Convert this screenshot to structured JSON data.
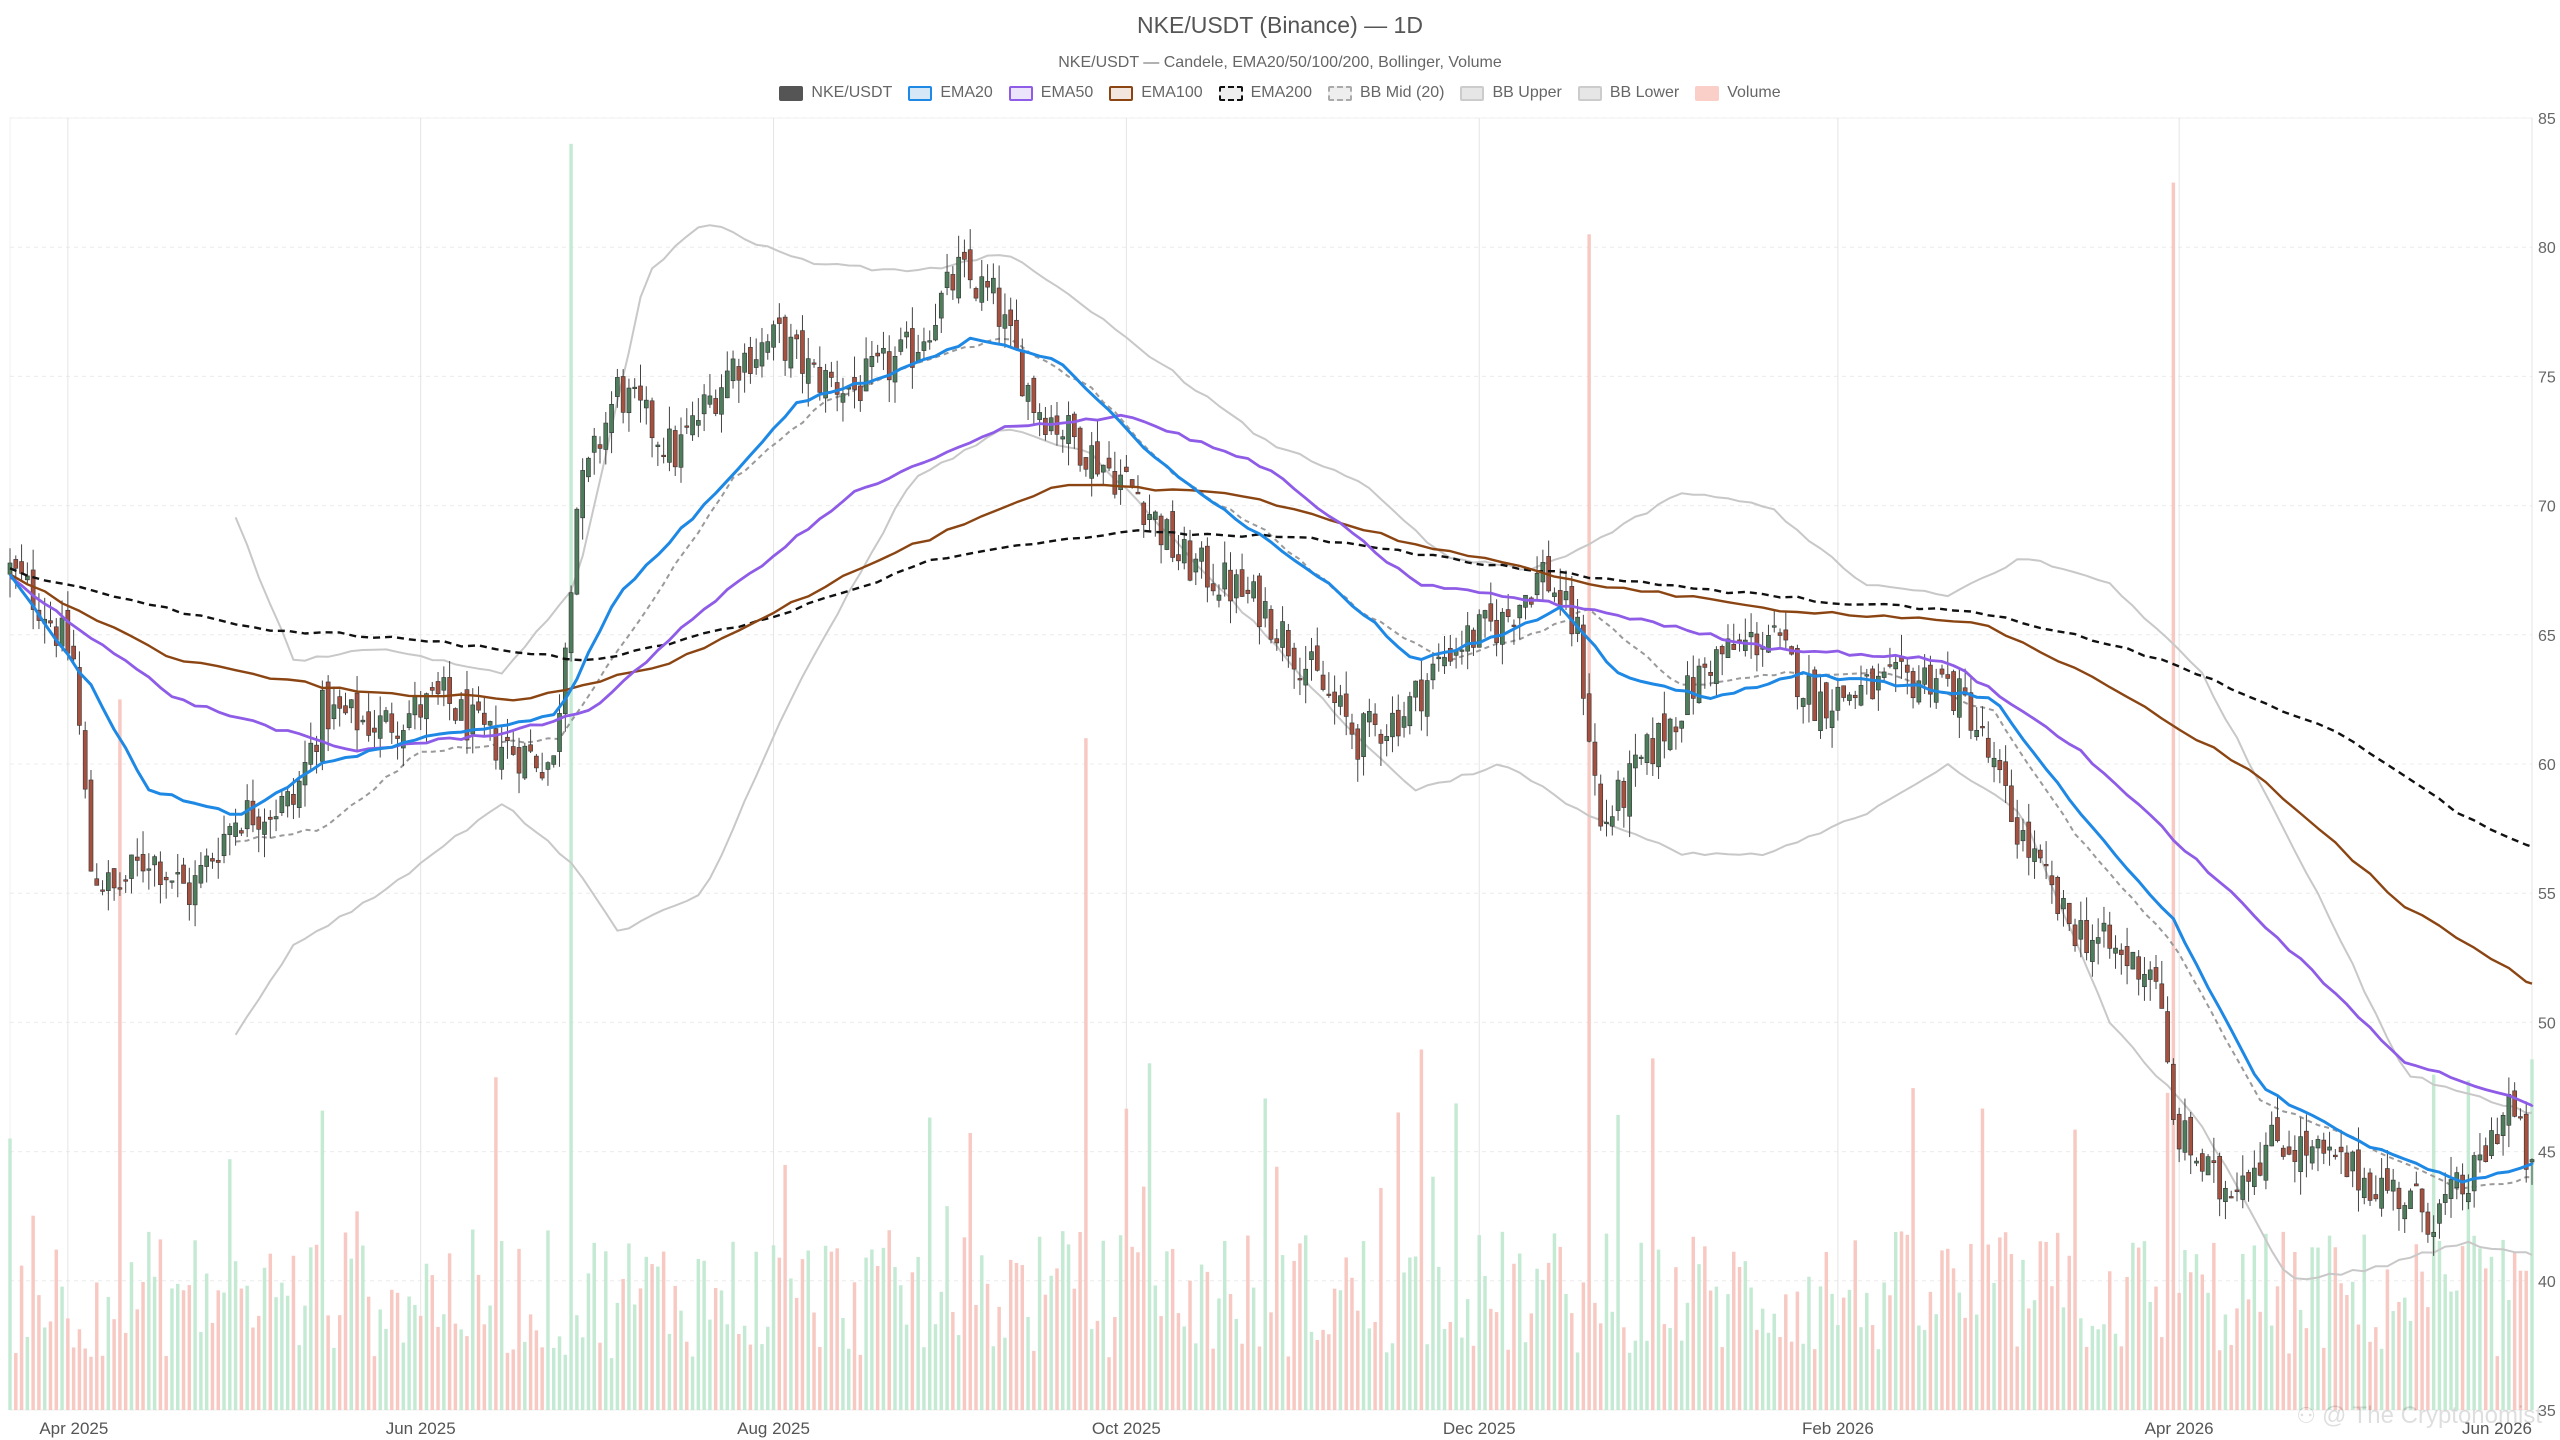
{
  "title": "NKE/USDT (Binance) — 1D",
  "subtitle": "NKE/USDT — Candele, EMA20/50/100/200, Bollinger, Volume",
  "watermark": "@ The Cryptonomist",
  "legend": [
    {
      "label": "NKE/USDT",
      "fill": "#555555",
      "border": "#555555",
      "dashed": false
    },
    {
      "label": "EMA20",
      "fill": "#d6e8f7",
      "border": "#1e88e5",
      "dashed": false
    },
    {
      "label": "EMA50",
      "fill": "#ece4fb",
      "border": "#8e5ce6",
      "dashed": false
    },
    {
      "label": "EMA100",
      "fill": "#f3e6de",
      "border": "#8b4513",
      "dashed": false
    },
    {
      "label": "EMA200",
      "fill": "#eeeeee",
      "border": "#111111",
      "dashed": true
    },
    {
      "label": "BB Mid (20)",
      "fill": "#eeeeee",
      "border": "#aaaaaa",
      "dashed": true
    },
    {
      "label": "BB Upper",
      "fill": "#e6e6e6",
      "border": "#cccccc",
      "dashed": false
    },
    {
      "label": "BB Lower",
      "fill": "#e6e6e6",
      "border": "#cccccc",
      "dashed": false
    },
    {
      "label": "Volume",
      "fill": "#f9cfc8",
      "border": "#f9cfc8",
      "dashed": false
    }
  ],
  "colors": {
    "up": "#4e7d5c",
    "down": "#a6513f",
    "volume_up": "#bfe8cf",
    "volume_down": "#f6c3bb",
    "ema20": "#1e88e5",
    "ema50": "#8e5ce6",
    "ema100": "#8b4513",
    "ema200": "#111111",
    "bb_mid": "#9a9a9a",
    "bb_band": "#c8c8c8",
    "grid": "#ececec"
  },
  "chart_data": {
    "type": "candlestick",
    "y_axis": {
      "position": "right",
      "range": [
        35,
        85
      ],
      "ticks": [
        35,
        40,
        45,
        50,
        55,
        60,
        65,
        70,
        75,
        80,
        85
      ]
    },
    "x_axis": {
      "range": [
        "2025-03-22",
        "2026-06-01"
      ],
      "tick_labels": [
        "Apr 2025",
        "Jun 2025",
        "Aug 2025",
        "Oct 2025",
        "Dec 2025",
        "Feb 2026",
        "Apr 2026",
        "Jun 2026"
      ],
      "tick_dates": [
        "2025-04-01",
        "2025-06-01",
        "2025-08-01",
        "2025-10-01",
        "2025-12-01",
        "2026-02-01",
        "2026-04-01",
        "2026-06-01"
      ]
    },
    "grid": true,
    "legend_position": "top-center",
    "close_anchors": [
      [
        "2025-03-22",
        67.5
      ],
      [
        "2025-03-28",
        66.0
      ],
      [
        "2025-04-02",
        64.0
      ],
      [
        "2025-04-05",
        56.0
      ],
      [
        "2025-04-09",
        55.0
      ],
      [
        "2025-04-15",
        56.5
      ],
      [
        "2025-04-22",
        55.0
      ],
      [
        "2025-04-30",
        58.0
      ],
      [
        "2025-05-10",
        58.5
      ],
      [
        "2025-05-15",
        62.0
      ],
      [
        "2025-05-25",
        61.5
      ],
      [
        "2025-06-05",
        62.5
      ],
      [
        "2025-06-12",
        61.0
      ],
      [
        "2025-06-18",
        60.5
      ],
      [
        "2025-06-24",
        60.0
      ],
      [
        "2025-06-28",
        70.0
      ],
      [
        "2025-07-05",
        74.5
      ],
      [
        "2025-07-15",
        72.0
      ],
      [
        "2025-07-25",
        75.5
      ],
      [
        "2025-08-02",
        76.5
      ],
      [
        "2025-08-08",
        75.0
      ],
      [
        "2025-08-15",
        74.5
      ],
      [
        "2025-08-25",
        76.0
      ],
      [
        "2025-09-02",
        79.0
      ],
      [
        "2025-09-08",
        78.0
      ],
      [
        "2025-09-15",
        74.0
      ],
      [
        "2025-09-25",
        72.0
      ],
      [
        "2025-10-03",
        70.5
      ],
      [
        "2025-10-10",
        68.0
      ],
      [
        "2025-10-18",
        67.0
      ],
      [
        "2025-10-25",
        66.0
      ],
      [
        "2025-11-02",
        63.5
      ],
      [
        "2025-11-10",
        61.0
      ],
      [
        "2025-11-18",
        62.0
      ],
      [
        "2025-11-26",
        64.5
      ],
      [
        "2025-12-05",
        65.5
      ],
      [
        "2025-12-12",
        67.5
      ],
      [
        "2025-12-18",
        65.0
      ],
      [
        "2025-12-22",
        57.5
      ],
      [
        "2026-01-01",
        61.0
      ],
      [
        "2026-01-10",
        64.0
      ],
      [
        "2026-01-20",
        65.0
      ],
      [
        "2026-01-28",
        62.5
      ],
      [
        "2026-02-10",
        63.0
      ],
      [
        "2026-02-18",
        63.5
      ],
      [
        "2026-02-24",
        62.0
      ],
      [
        "2026-03-03",
        58.0
      ],
      [
        "2026-03-12",
        54.0
      ],
      [
        "2026-03-22",
        52.5
      ],
      [
        "2026-03-28",
        52.0
      ],
      [
        "2026-03-31",
        46.0
      ],
      [
        "2026-04-08",
        43.5
      ],
      [
        "2026-04-18",
        45.5
      ],
      [
        "2026-04-28",
        44.5
      ],
      [
        "2026-05-08",
        43.5
      ],
      [
        "2026-05-15",
        42.5
      ],
      [
        "2026-05-22",
        44.0
      ],
      [
        "2026-05-28",
        47.0
      ],
      [
        "2026-06-01",
        44.0
      ]
    ],
    "ema20_anchors": [
      [
        "2025-03-22",
        67.3
      ],
      [
        "2025-04-05",
        63.0
      ],
      [
        "2025-04-15",
        59.0
      ],
      [
        "2025-05-01",
        58.0
      ],
      [
        "2025-05-15",
        60.0
      ],
      [
        "2025-06-01",
        61.0
      ],
      [
        "2025-06-15",
        61.5
      ],
      [
        "2025-06-25",
        62.0
      ],
      [
        "2025-07-05",
        66.5
      ],
      [
        "2025-07-20",
        70.0
      ],
      [
        "2025-08-05",
        74.0
      ],
      [
        "2025-08-20",
        75.0
      ],
      [
        "2025-09-05",
        76.5
      ],
      [
        "2025-09-20",
        75.5
      ],
      [
        "2025-10-05",
        72.0
      ],
      [
        "2025-10-20",
        69.5
      ],
      [
        "2025-11-05",
        67.0
      ],
      [
        "2025-11-20",
        64.0
      ],
      [
        "2025-12-05",
        65.0
      ],
      [
        "2025-12-15",
        66.0
      ],
      [
        "2025-12-25",
        63.5
      ],
      [
        "2026-01-10",
        62.5
      ],
      [
        "2026-01-25",
        63.5
      ],
      [
        "2026-02-15",
        63.0
      ],
      [
        "2026-02-28",
        62.5
      ],
      [
        "2026-03-15",
        58.0
      ],
      [
        "2026-03-31",
        54.0
      ],
      [
        "2026-04-15",
        47.5
      ],
      [
        "2026-05-01",
        45.5
      ],
      [
        "2026-05-20",
        43.8
      ],
      [
        "2026-06-01",
        44.5
      ]
    ],
    "ema50_anchors": [
      [
        "2025-03-22",
        67.2
      ],
      [
        "2025-04-20",
        62.5
      ],
      [
        "2025-05-20",
        60.5
      ],
      [
        "2025-06-15",
        61.2
      ],
      [
        "2025-06-30",
        62.0
      ],
      [
        "2025-07-20",
        66.0
      ],
      [
        "2025-08-15",
        70.5
      ],
      [
        "2025-09-10",
        73.0
      ],
      [
        "2025-10-01",
        73.5
      ],
      [
        "2025-10-25",
        71.5
      ],
      [
        "2025-11-20",
        67.0
      ],
      [
        "2025-12-20",
        66.0
      ],
      [
        "2026-01-20",
        64.5
      ],
      [
        "2026-02-20",
        64.0
      ],
      [
        "2026-03-15",
        60.5
      ],
      [
        "2026-04-10",
        55.0
      ],
      [
        "2026-05-10",
        48.5
      ],
      [
        "2026-06-01",
        46.8
      ]
    ],
    "ema100_anchors": [
      [
        "2025-03-22",
        67.3
      ],
      [
        "2025-04-20",
        64.0
      ],
      [
        "2025-05-20",
        62.8
      ],
      [
        "2025-06-20",
        62.5
      ],
      [
        "2025-07-15",
        64.0
      ],
      [
        "2025-08-20",
        68.0
      ],
      [
        "2025-09-20",
        70.8
      ],
      [
        "2025-10-20",
        70.5
      ],
      [
        "2025-11-20",
        68.5
      ],
      [
        "2025-12-20",
        67.0
      ],
      [
        "2026-01-20",
        66.0
      ],
      [
        "2026-02-25",
        65.5
      ],
      [
        "2026-03-20",
        63.0
      ],
      [
        "2026-04-15",
        59.5
      ],
      [
        "2026-05-10",
        54.5
      ],
      [
        "2026-06-01",
        51.5
      ]
    ],
    "ema200_anchors": [
      [
        "2025-03-22",
        67.5
      ],
      [
        "2025-05-01",
        65.3
      ],
      [
        "2025-06-01",
        64.8
      ],
      [
        "2025-06-30",
        64.0
      ],
      [
        "2025-07-30",
        65.5
      ],
      [
        "2025-08-30",
        68.0
      ],
      [
        "2025-09-30",
        69.0
      ],
      [
        "2025-10-30",
        68.8
      ],
      [
        "2025-11-30",
        67.8
      ],
      [
        "2025-12-30",
        67.0
      ],
      [
        "2026-01-30",
        66.3
      ],
      [
        "2026-02-28",
        65.8
      ],
      [
        "2026-03-30",
        64.0
      ],
      [
        "2026-04-30",
        61.0
      ],
      [
        "2026-05-20",
        58.0
      ],
      [
        "2026-06-01",
        56.8
      ]
    ],
    "bb_upper_anchors": [
      [
        "2025-04-30",
        69.5
      ],
      [
        "2025-05-10",
        64.0
      ],
      [
        "2025-05-25",
        64.5
      ],
      [
        "2025-06-15",
        63.5
      ],
      [
        "2025-06-28",
        67.0
      ],
      [
        "2025-07-10",
        79.0
      ],
      [
        "2025-07-20",
        81.0
      ],
      [
        "2025-08-05",
        79.5
      ],
      [
        "2025-08-25",
        79.0
      ],
      [
        "2025-09-10",
        79.8
      ],
      [
        "2025-09-25",
        77.5
      ],
      [
        "2025-10-10",
        75.0
      ],
      [
        "2025-10-25",
        72.5
      ],
      [
        "2025-11-10",
        71.0
      ],
      [
        "2025-11-25",
        68.0
      ],
      [
        "2025-12-10",
        67.5
      ],
      [
        "2025-12-20",
        68.5
      ],
      [
        "2026-01-05",
        70.5
      ],
      [
        "2026-01-20",
        70.0
      ],
      [
        "2026-02-05",
        67.0
      ],
      [
        "2026-02-20",
        66.5
      ],
      [
        "2026-03-05",
        68.0
      ],
      [
        "2026-03-20",
        67.0
      ],
      [
        "2026-04-05",
        63.5
      ],
      [
        "2026-04-25",
        55.0
      ],
      [
        "2026-05-10",
        48.0
      ],
      [
        "2026-06-01",
        46.5
      ]
    ],
    "bb_mid_anchors": [
      [
        "2025-04-30",
        57.0
      ],
      [
        "2025-05-15",
        57.5
      ],
      [
        "2025-06-01",
        60.5
      ],
      [
        "2025-06-25",
        61.0
      ],
      [
        "2025-07-10",
        66.0
      ],
      [
        "2025-07-25",
        71.0
      ],
      [
        "2025-08-10",
        74.0
      ],
      [
        "2025-08-25",
        75.5
      ],
      [
        "2025-09-10",
        76.5
      ],
      [
        "2025-09-25",
        74.5
      ],
      [
        "2025-10-10",
        71.0
      ],
      [
        "2025-10-25",
        69.0
      ],
      [
        "2025-11-10",
        66.0
      ],
      [
        "2025-11-25",
        64.0
      ],
      [
        "2025-12-10",
        65.0
      ],
      [
        "2025-12-20",
        66.0
      ],
      [
        "2026-01-05",
        63.0
      ],
      [
        "2026-01-20",
        63.5
      ],
      [
        "2026-02-10",
        63.5
      ],
      [
        "2026-02-28",
        62.0
      ],
      [
        "2026-03-15",
        57.0
      ],
      [
        "2026-03-31",
        53.0
      ],
      [
        "2026-04-15",
        47.0
      ],
      [
        "2026-05-01",
        45.5
      ],
      [
        "2026-05-20",
        43.5
      ],
      [
        "2026-06-01",
        44.0
      ]
    ],
    "bb_lower_anchors": [
      [
        "2025-04-30",
        49.5
      ],
      [
        "2025-05-10",
        53.0
      ],
      [
        "2025-05-25",
        55.0
      ],
      [
        "2025-06-15",
        58.5
      ],
      [
        "2025-06-28",
        56.0
      ],
      [
        "2025-07-05",
        53.5
      ],
      [
        "2025-07-20",
        55.0
      ],
      [
        "2025-08-05",
        63.0
      ],
      [
        "2025-08-25",
        71.0
      ],
      [
        "2025-09-10",
        73.0
      ],
      [
        "2025-09-25",
        72.0
      ],
      [
        "2025-10-10",
        68.5
      ],
      [
        "2025-10-25",
        65.0
      ],
      [
        "2025-11-10",
        61.0
      ],
      [
        "2025-11-20",
        59.0
      ],
      [
        "2025-12-05",
        60.0
      ],
      [
        "2025-12-20",
        58.0
      ],
      [
        "2026-01-05",
        56.5
      ],
      [
        "2026-01-20",
        56.5
      ],
      [
        "2026-02-05",
        58.0
      ],
      [
        "2026-02-20",
        60.0
      ],
      [
        "2026-03-05",
        58.0
      ],
      [
        "2026-03-20",
        50.0
      ],
      [
        "2026-04-05",
        46.0
      ],
      [
        "2026-04-20",
        40.0
      ],
      [
        "2026-05-05",
        40.5
      ],
      [
        "2026-05-20",
        41.5
      ],
      [
        "2026-06-01",
        41.0
      ]
    ],
    "volume_spikes": [
      [
        "2025-04-10",
        0.55
      ],
      [
        "2025-06-27",
        0.98
      ],
      [
        "2025-09-24",
        0.52
      ],
      [
        "2025-12-20",
        0.91
      ],
      [
        "2026-03-31",
        0.95
      ]
    ]
  }
}
